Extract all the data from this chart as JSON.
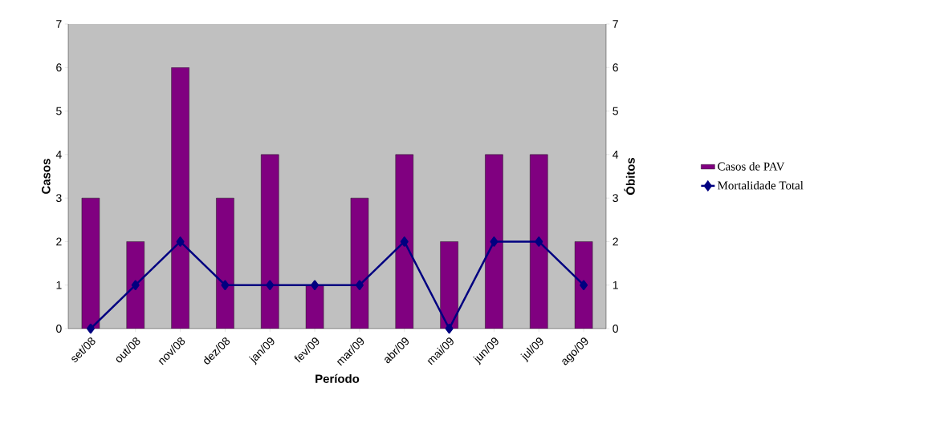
{
  "chart_data": {
    "type": "bar",
    "xlabel": "Período",
    "ylabel": "Casos",
    "y2label": "Óbitos",
    "categories": [
      "set/08",
      "out/08",
      "nov/08",
      "dez/08",
      "jan/09",
      "fev/09",
      "mar/09",
      "abr/09",
      "mai/09",
      "jun/09",
      "jul/09",
      "ago/09"
    ],
    "series": [
      {
        "name": "Casos de PAV",
        "color": "#800080",
        "values": [
          3,
          2,
          6,
          3,
          4,
          1,
          3,
          4,
          2,
          4,
          4,
          2
        ]
      },
      {
        "name": "Mortalidade Total",
        "type": "line",
        "axis": "y2",
        "color": "#000080",
        "marker": "diamond",
        "values": [
          0,
          1,
          2,
          1,
          1,
          1,
          1,
          2,
          0,
          2,
          2,
          1
        ]
      }
    ],
    "ylim": [
      0,
      7
    ],
    "yticks": [
      0,
      1,
      2,
      3,
      4,
      5,
      6,
      7
    ],
    "y2lim": [
      0,
      7
    ],
    "y2ticks": [
      0,
      1,
      2,
      3,
      4,
      5,
      6,
      7
    ],
    "legend": "right",
    "grid": false
  }
}
